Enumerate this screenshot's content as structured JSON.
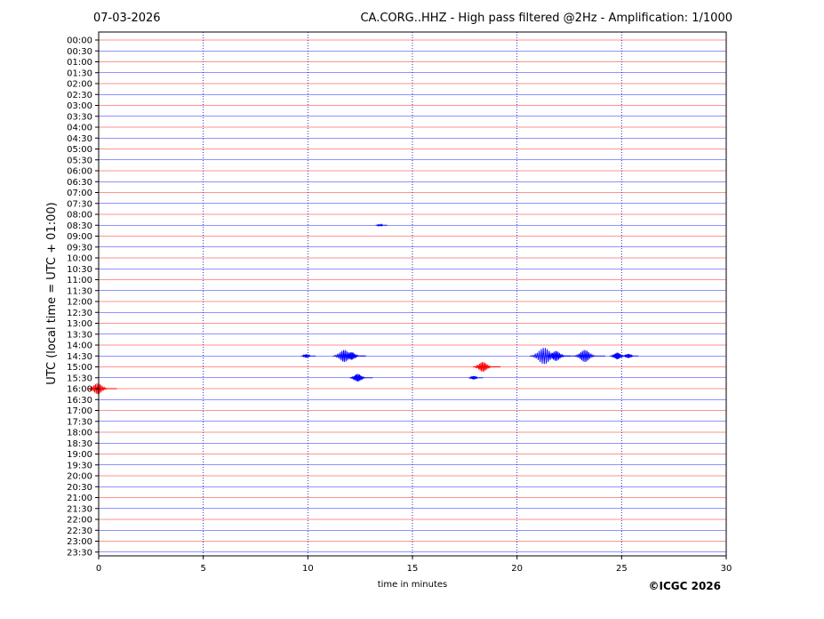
{
  "header": {
    "date": "07-03-2026",
    "title": "CA.CORG..HHZ - High pass filtered @2Hz - Amplification: 1/1000"
  },
  "credit": "©ICGC 2026",
  "colors": {
    "trace_red": "#ff0000",
    "trace_blue": "#0000ff",
    "grid": "#0000aa",
    "axis": "#000000"
  },
  "chart_data": {
    "type": "line",
    "title": "CA.CORG..HHZ - High pass filtered @2Hz - Amplification: 1/1000",
    "xlabel": "time in minutes",
    "ylabel": "UTC (local time = UTC + 01:00)",
    "xlim": [
      0,
      30
    ],
    "x_ticks": [
      "0",
      "5",
      "10",
      "15",
      "20",
      "25",
      "30"
    ],
    "grid": "vertical dotted lines at every 5 minutes",
    "row_labels": [
      "00:00",
      "00:30",
      "01:00",
      "01:30",
      "02:00",
      "02:30",
      "03:00",
      "03:30",
      "04:00",
      "04:30",
      "05:00",
      "05:30",
      "06:00",
      "06:30",
      "07:00",
      "07:30",
      "08:00",
      "08:30",
      "09:00",
      "09:30",
      "10:00",
      "10:30",
      "11:00",
      "11:30",
      "12:00",
      "12:30",
      "13:00",
      "13:30",
      "14:00",
      "14:30",
      "15:00",
      "15:30",
      "16:00",
      "16:30",
      "17:00",
      "17:30",
      "18:00",
      "18:30",
      "19:00",
      "19:30",
      "20:00",
      "20:30",
      "21:00",
      "21:30",
      "22:00",
      "22:30",
      "23:00",
      "23:30"
    ],
    "row_colors": "alternating red (full hour) and blue (half hour)",
    "events": [
      {
        "row": "14:30",
        "minute": 10.0,
        "amplitude": 0.15
      },
      {
        "row": "14:30",
        "minute": 11.9,
        "amplitude": 0.55
      },
      {
        "row": "14:30",
        "minute": 12.2,
        "amplitude": 0.35
      },
      {
        "row": "14:30",
        "minute": 21.5,
        "amplitude": 0.75
      },
      {
        "row": "14:30",
        "minute": 22.0,
        "amplitude": 0.45
      },
      {
        "row": "14:30",
        "minute": 23.4,
        "amplitude": 0.55
      },
      {
        "row": "14:30",
        "minute": 24.9,
        "amplitude": 0.3
      },
      {
        "row": "14:30",
        "minute": 25.4,
        "amplitude": 0.18
      },
      {
        "row": "15:00",
        "minute": 18.5,
        "amplitude": 0.45
      },
      {
        "row": "15:30",
        "minute": 12.5,
        "amplitude": 0.35
      },
      {
        "row": "15:30",
        "minute": 18.0,
        "amplitude": 0.15
      },
      {
        "row": "16:00",
        "minute": 0.1,
        "amplitude": 0.5
      },
      {
        "row": "08:30",
        "minute": 13.5,
        "amplitude": 0.08
      }
    ]
  }
}
